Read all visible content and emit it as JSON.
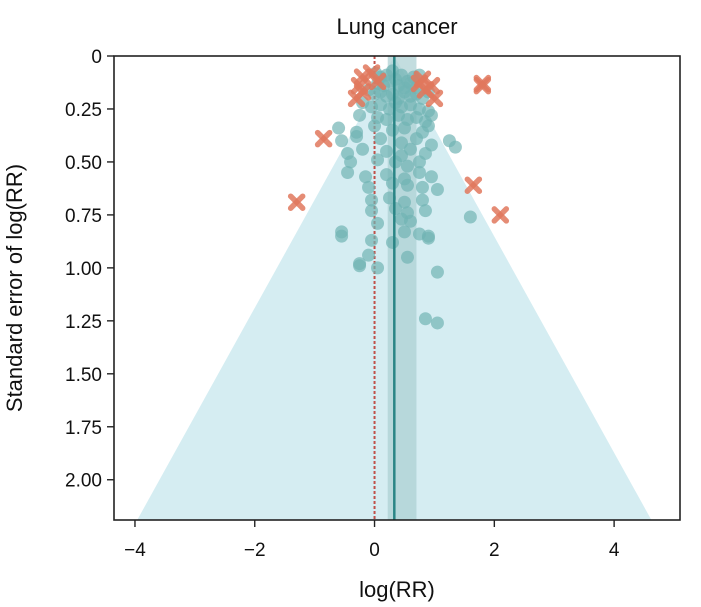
{
  "chart_data": {
    "type": "scatter",
    "title": "Lung cancer",
    "xlabel": "log(RR)",
    "ylabel": "Standard error of log(RR)",
    "xlim": [
      -4.35,
      5.1
    ],
    "ylim": [
      0,
      2.19
    ],
    "y_inverted": true,
    "x_ticks": [
      -4,
      -2,
      0,
      2,
      4
    ],
    "x_tick_labels": [
      "−4",
      "−2",
      "0",
      "2",
      "4"
    ],
    "y_ticks": [
      0,
      0.25,
      0.5,
      0.75,
      1.0,
      1.25,
      1.5,
      1.75,
      2.0
    ],
    "y_tick_labels": [
      "0",
      "0.25",
      "0.50",
      "0.75",
      "1.00",
      "1.25",
      "1.50",
      "1.75",
      "2.00"
    ],
    "pooled_estimate": 0.33,
    "pooled_ci": [
      0.22,
      0.7
    ],
    "null_line": 0,
    "funnel": {
      "center": 0.33,
      "z": 1.96
    },
    "grid": false,
    "colors": {
      "funnel": "#d5edf2",
      "ci_band": "#a9cfd2",
      "study": "#71b3b3",
      "outlier": "#e1785d",
      "pooled_line": "#2a8585",
      "null_line": "#c0514a"
    },
    "series": [
      {
        "role": "studies",
        "points": [
          [
            0.02,
            0.08
          ],
          [
            0.1,
            0.1
          ],
          [
            0.2,
            0.09
          ],
          [
            0.3,
            0.07
          ],
          [
            0.35,
            0.11
          ],
          [
            0.45,
            0.09
          ],
          [
            0.55,
            0.12
          ],
          [
            0.65,
            0.1
          ],
          [
            0.75,
            0.09
          ],
          [
            0.05,
            0.13
          ],
          [
            0.15,
            0.14
          ],
          [
            0.25,
            0.12
          ],
          [
            0.4,
            0.14
          ],
          [
            0.5,
            0.15
          ],
          [
            0.6,
            0.13
          ],
          [
            0.7,
            0.15
          ],
          [
            -0.1,
            0.16
          ],
          [
            0.0,
            0.18
          ],
          [
            0.1,
            0.17
          ],
          [
            0.2,
            0.19
          ],
          [
            0.3,
            0.18
          ],
          [
            0.4,
            0.2
          ],
          [
            0.5,
            0.17
          ],
          [
            0.6,
            0.19
          ],
          [
            0.7,
            0.18
          ],
          [
            0.8,
            0.2
          ],
          [
            0.9,
            0.17
          ],
          [
            -0.2,
            0.22
          ],
          [
            -0.05,
            0.24
          ],
          [
            0.1,
            0.23
          ],
          [
            0.25,
            0.25
          ],
          [
            0.35,
            0.22
          ],
          [
            0.45,
            0.24
          ],
          [
            0.6,
            0.23
          ],
          [
            0.75,
            0.25
          ],
          [
            0.9,
            0.26
          ],
          [
            -0.25,
            0.28
          ],
          [
            0.05,
            0.29
          ],
          [
            0.2,
            0.3
          ],
          [
            0.4,
            0.28
          ],
          [
            0.55,
            0.3
          ],
          [
            0.7,
            0.29
          ],
          [
            0.85,
            0.31
          ],
          [
            0.95,
            0.28
          ],
          [
            -0.6,
            0.34
          ],
          [
            -0.3,
            0.36
          ],
          [
            0.0,
            0.33
          ],
          [
            0.3,
            0.35
          ],
          [
            0.5,
            0.34
          ],
          [
            0.8,
            0.36
          ],
          [
            0.9,
            0.33
          ],
          [
            -0.55,
            0.4
          ],
          [
            -0.3,
            0.38
          ],
          [
            0.1,
            0.39
          ],
          [
            0.45,
            0.41
          ],
          [
            0.7,
            0.39
          ],
          [
            0.95,
            0.42
          ],
          [
            1.25,
            0.4
          ],
          [
            1.35,
            0.43
          ],
          [
            -0.45,
            0.46
          ],
          [
            -0.2,
            0.44
          ],
          [
            0.2,
            0.45
          ],
          [
            0.45,
            0.47
          ],
          [
            0.6,
            0.44
          ],
          [
            0.85,
            0.46
          ],
          [
            -0.4,
            0.5
          ],
          [
            0.05,
            0.49
          ],
          [
            0.35,
            0.5
          ],
          [
            0.55,
            0.52
          ],
          [
            0.75,
            0.5
          ],
          [
            -0.45,
            0.55
          ],
          [
            -0.15,
            0.57
          ],
          [
            0.2,
            0.56
          ],
          [
            0.5,
            0.58
          ],
          [
            0.75,
            0.55
          ],
          [
            0.95,
            0.57
          ],
          [
            -0.1,
            0.62
          ],
          [
            0.3,
            0.6
          ],
          [
            0.55,
            0.61
          ],
          [
            0.8,
            0.62
          ],
          [
            1.05,
            0.63
          ],
          [
            -0.05,
            0.68
          ],
          [
            0.25,
            0.67
          ],
          [
            0.5,
            0.69
          ],
          [
            0.8,
            0.68
          ],
          [
            -0.05,
            0.73
          ],
          [
            0.35,
            0.72
          ],
          [
            0.55,
            0.74
          ],
          [
            0.85,
            0.73
          ],
          [
            1.6,
            0.76
          ],
          [
            0.05,
            0.79
          ],
          [
            0.45,
            0.77
          ],
          [
            0.6,
            0.78
          ],
          [
            -0.55,
            0.83
          ],
          [
            -0.55,
            0.85
          ],
          [
            0.5,
            0.83
          ],
          [
            0.75,
            0.84
          ],
          [
            0.9,
            0.86
          ],
          [
            -0.05,
            0.87
          ],
          [
            0.3,
            0.88
          ],
          [
            0.9,
            0.85
          ],
          [
            -0.1,
            0.94
          ],
          [
            0.55,
            0.95
          ],
          [
            -0.25,
            0.98
          ],
          [
            -0.25,
            0.99
          ],
          [
            0.05,
            1.0
          ],
          [
            1.05,
            1.02
          ],
          [
            0.85,
            1.24
          ],
          [
            1.05,
            1.26
          ]
        ]
      },
      {
        "role": "outliers",
        "points": [
          [
            -0.05,
            0.08
          ],
          [
            -0.2,
            0.1
          ],
          [
            -0.25,
            0.14
          ],
          [
            -0.2,
            0.17
          ],
          [
            -0.3,
            0.2
          ],
          [
            0.05,
            0.12
          ],
          [
            0.8,
            0.11
          ],
          [
            0.75,
            0.13
          ],
          [
            0.85,
            0.16
          ],
          [
            0.95,
            0.14
          ],
          [
            1.0,
            0.2
          ],
          [
            1.8,
            0.13
          ],
          [
            1.8,
            0.14
          ],
          [
            -0.85,
            0.39
          ],
          [
            1.65,
            0.61
          ],
          [
            -1.3,
            0.69
          ],
          [
            2.1,
            0.75
          ]
        ]
      }
    ]
  }
}
